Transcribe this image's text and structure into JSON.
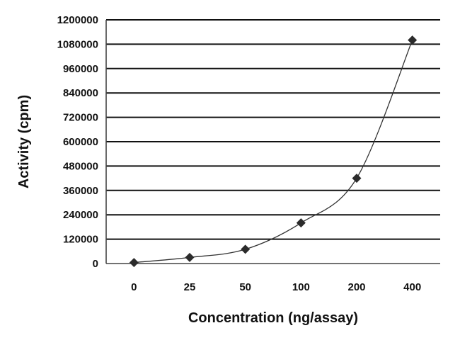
{
  "chart_data": {
    "type": "line",
    "title": "",
    "xlabel": "Concentration (ng/assay)",
    "ylabel": "Activity (cpm)",
    "categories": [
      "0",
      "25",
      "50",
      "100",
      "200",
      "400"
    ],
    "series": [
      {
        "values": [
          5000,
          30000,
          70000,
          200000,
          420000,
          1100000
        ]
      }
    ],
    "ylim": [
      0,
      1200000
    ],
    "yticks": [
      "0",
      "120000",
      "240000",
      "360000",
      "480000",
      "600000",
      "720000",
      "840000",
      "960000",
      "1080000",
      "1200000"
    ],
    "grid": true,
    "marker": "diamond",
    "colors": {
      "line": "#333333",
      "marker": "#2b2b2b",
      "grid": "#111111"
    }
  }
}
